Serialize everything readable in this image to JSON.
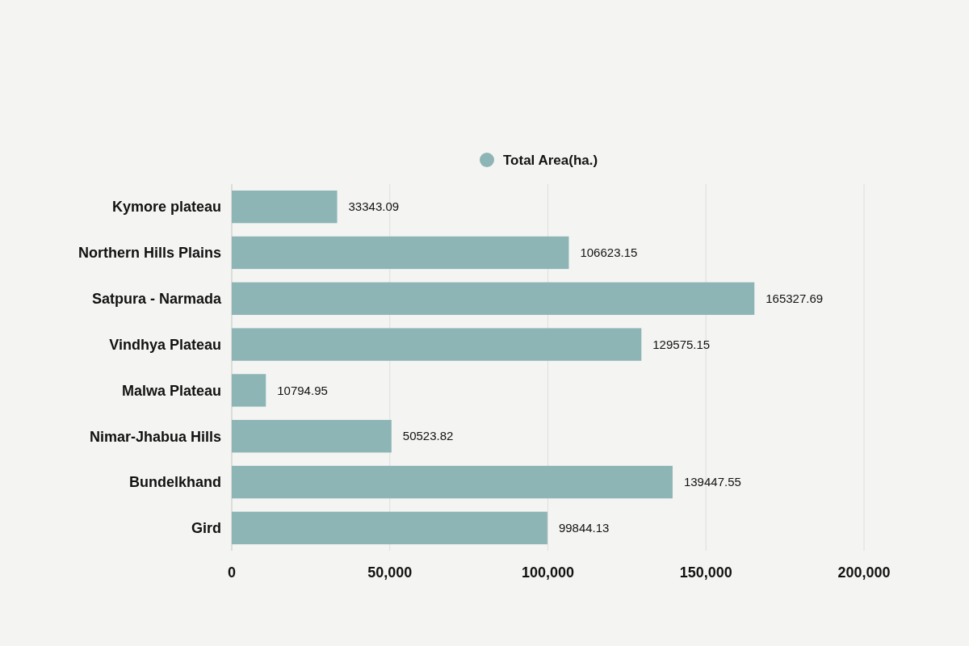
{
  "chart_data": {
    "type": "bar",
    "orientation": "horizontal",
    "categories": [
      "Kymore plateau",
      "Northern Hills Plains",
      "Satpura - Narmada",
      "Vindhya Plateau",
      "Malwa Plateau",
      "Nimar-Jhabua Hills",
      "Bundelkhand",
      "Gird"
    ],
    "series": [
      {
        "name": "Total Area(ha.)",
        "color": "#8db5b6",
        "values": [
          33343.09,
          106623.15,
          165327.69,
          129575.15,
          10794.95,
          50523.82,
          139447.55,
          99844.13
        ]
      }
    ],
    "xlim": [
      0,
      200000
    ],
    "xticks": [
      0,
      {
        "value": 50000,
        "label": "50,000"
      },
      {
        "value": 100000,
        "label": "100,000"
      },
      {
        "value": 150000,
        "label": "150,000"
      },
      {
        "value": 200000,
        "label": "200,000"
      }
    ],
    "grid": "x",
    "legend": "top",
    "data_labels": true
  }
}
